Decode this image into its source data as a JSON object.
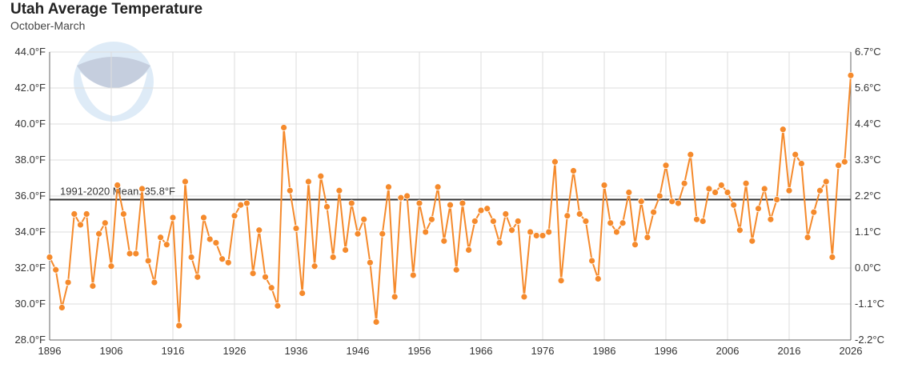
{
  "chart_data": {
    "type": "line",
    "title": "Utah Average Temperature",
    "subtitle": "October-March",
    "xlim": [
      1896,
      2026
    ],
    "ylim": [
      28,
      44
    ],
    "x_ticks": [
      "1896",
      "1906",
      "1916",
      "1926",
      "1936",
      "1946",
      "1956",
      "1966",
      "1976",
      "1986",
      "1996",
      "2006",
      "2016",
      "2026"
    ],
    "y_ticks_left": [
      "28.0°F",
      "30.0°F",
      "32.0°F",
      "34.0°F",
      "36.0°F",
      "38.0°F",
      "40.0°F",
      "42.0°F",
      "44.0°F"
    ],
    "y_ticks_right": [
      "-2.2°C",
      "-1.1°C",
      "0.0°C",
      "1.1°C",
      "2.2°C",
      "3.3°C",
      "4.4°C",
      "5.6°C",
      "6.7°C"
    ],
    "grid": true,
    "mean": {
      "label": "1991-2020 Mean: 35.8°F",
      "value": 35.8
    },
    "series_color": "#f58a2c",
    "start_year": 1896,
    "values": [
      32.6,
      31.9,
      29.8,
      31.2,
      35.0,
      34.4,
      35.0,
      31.0,
      33.9,
      34.5,
      32.1,
      36.6,
      35.0,
      32.8,
      32.8,
      36.4,
      32.4,
      31.2,
      33.7,
      33.3,
      34.8,
      28.8,
      36.8,
      32.6,
      31.5,
      34.8,
      33.6,
      33.4,
      32.5,
      32.3,
      34.9,
      35.5,
      35.6,
      31.7,
      34.1,
      31.5,
      30.9,
      29.9,
      39.8,
      36.3,
      34.2,
      30.6,
      36.8,
      32.1,
      37.1,
      35.4,
      32.6,
      36.3,
      33.0,
      35.6,
      33.9,
      34.7,
      32.3,
      29.0,
      33.9,
      36.5,
      30.4,
      35.9,
      36.0,
      31.6,
      35.6,
      34.0,
      34.7,
      36.5,
      33.5,
      35.5,
      31.9,
      35.6,
      33.0,
      34.6,
      35.2,
      35.3,
      34.6,
      33.4,
      35.0,
      34.1,
      34.6,
      30.4,
      34.0,
      33.8,
      33.8,
      34.0,
      37.9,
      31.3,
      34.9,
      37.4,
      35.0,
      34.6,
      32.4,
      31.4,
      36.6,
      34.5,
      34.0,
      34.5,
      36.2,
      33.3,
      35.7,
      33.7,
      35.1,
      36.0,
      37.7,
      35.7,
      35.6,
      36.7,
      38.3,
      34.7,
      34.6,
      36.4,
      36.2,
      36.6,
      36.2,
      35.5,
      34.1,
      36.7,
      33.5,
      35.3,
      36.4,
      34.7,
      35.8,
      39.7,
      36.3,
      38.3,
      37.8,
      33.7,
      35.1,
      36.3,
      36.8,
      32.6,
      37.7,
      37.9,
      42.7
    ]
  },
  "logo": "NOAA"
}
